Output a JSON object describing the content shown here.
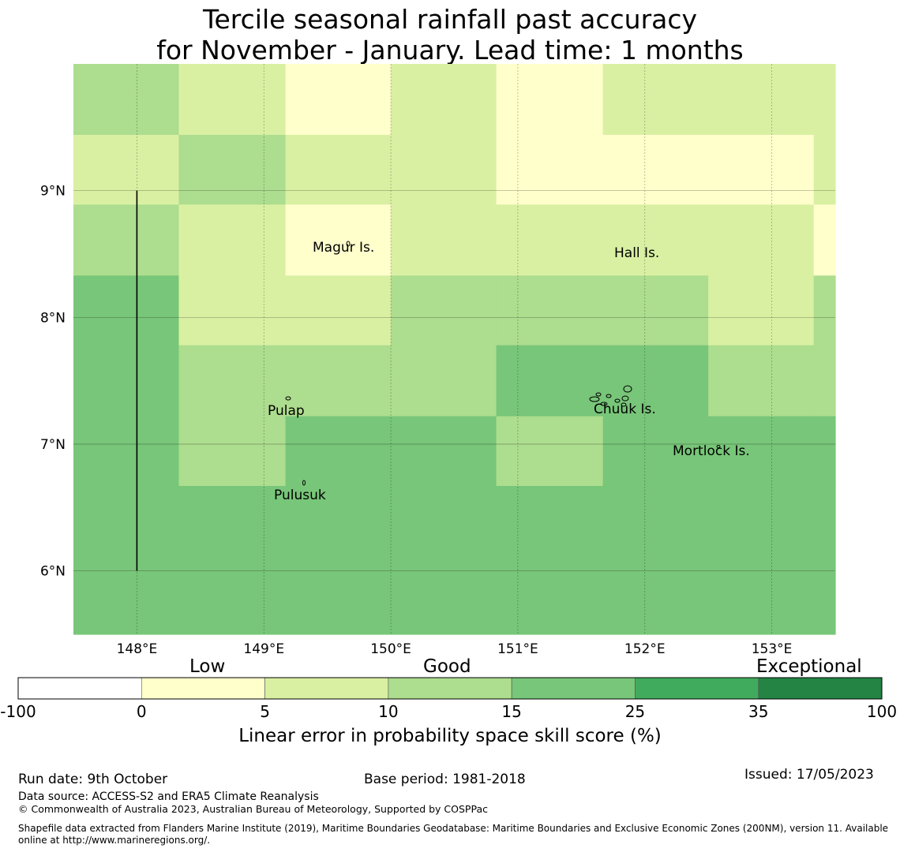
{
  "title": {
    "line1": "Tercile seasonal rainfall past accuracy",
    "line2": "for November - January. Lead time: 1 months"
  },
  "map": {
    "lon_range": [
      147.5,
      153.5
    ],
    "lat_range": [
      5.5,
      10.0
    ],
    "lon_ticks": [
      148,
      149,
      150,
      151,
      152,
      153
    ],
    "lat_ticks": [
      6,
      7,
      8,
      9
    ],
    "lon_tick_labels": [
      "148°E",
      "149°E",
      "150°E",
      "151°E",
      "152°E",
      "153°E"
    ],
    "lat_tick_labels": [
      "6°N",
      "7°N",
      "8°N",
      "9°N"
    ],
    "grid_lon_edges": [
      147.5,
      148.33,
      149.17,
      150.0,
      150.83,
      151.67,
      152.5,
      153.33,
      153.5
    ],
    "grid_lat_edges": [
      10.0,
      9.44,
      8.89,
      8.33,
      7.78,
      7.22,
      6.67,
      5.5
    ],
    "grid_classes": [
      [
        3,
        2,
        1,
        2,
        1,
        2,
        2,
        2
      ],
      [
        2,
        3,
        2,
        2,
        1,
        1,
        1,
        2
      ],
      [
        3,
        2,
        1,
        2,
        2,
        2,
        2,
        1
      ],
      [
        4,
        2,
        2,
        3,
        3,
        3,
        2,
        3
      ],
      [
        4,
        3,
        3,
        3,
        4,
        4,
        3,
        3
      ],
      [
        4,
        3,
        4,
        4,
        3,
        4,
        4,
        4
      ],
      [
        4,
        4,
        4,
        4,
        4,
        4,
        4,
        4
      ]
    ],
    "meridian_line": {
      "lon": 148.0,
      "lat_from": 6.0,
      "lat_to": 9.0
    },
    "islands": [
      {
        "name": "Magur Is.",
        "lon": 149.67,
        "lat": 8.6
      },
      {
        "name": "Hall Is.",
        "lon": 151.8,
        "lat": 8.55
      },
      {
        "name": "Pulap",
        "lon": 149.2,
        "lat": 7.35
      },
      {
        "name": "Chuuk Is.",
        "lon": 151.8,
        "lat": 7.35
      },
      {
        "name": "Mortlock Is.",
        "lon": 152.6,
        "lat": 7.0
      },
      {
        "name": "Pulusuk",
        "lon": 149.3,
        "lat": 6.7
      }
    ]
  },
  "colorbar": {
    "categories": [
      {
        "range": [
          -100,
          0
        ],
        "color": "#ffffff"
      },
      {
        "range": [
          0,
          5
        ],
        "color": "#ffffcc"
      },
      {
        "range": [
          5,
          10
        ],
        "color": "#d9f0a3"
      },
      {
        "range": [
          10,
          15
        ],
        "color": "#addd8e"
      },
      {
        "range": [
          15,
          25
        ],
        "color": "#78c679"
      },
      {
        "range": [
          25,
          35
        ],
        "color": "#41ab5d"
      },
      {
        "range": [
          35,
          100
        ],
        "color": "#238443"
      }
    ],
    "tick_labels": [
      "-100",
      "0",
      "5",
      "10",
      "15",
      "25",
      "35",
      "100"
    ],
    "group_labels": [
      "Low",
      "Good",
      "Exceptional"
    ],
    "label": "Linear error in probability space skill score (%)"
  },
  "footer": {
    "run_date": "Run date: 9th October",
    "base_period": "Base period: 1981-2018",
    "issued": "Issued: 17/05/2023",
    "data_source": "Data source: ACCESS-S2 and ERA5 Climate Reanalysis",
    "copyright": "© Commonwealth of Australia 2023, Australian Bureau of Meteorology, Supported by COSPPac",
    "shapefile_line1": "Shapefile data extracted from Flanders Marine Institute (2019), Maritime Boundaries Geodatabase: Maritime Boundaries and Exclusive Economic Zones (200NM), version 11. Available",
    "shapefile_line2": "online at http://www.marineregions.org/."
  }
}
